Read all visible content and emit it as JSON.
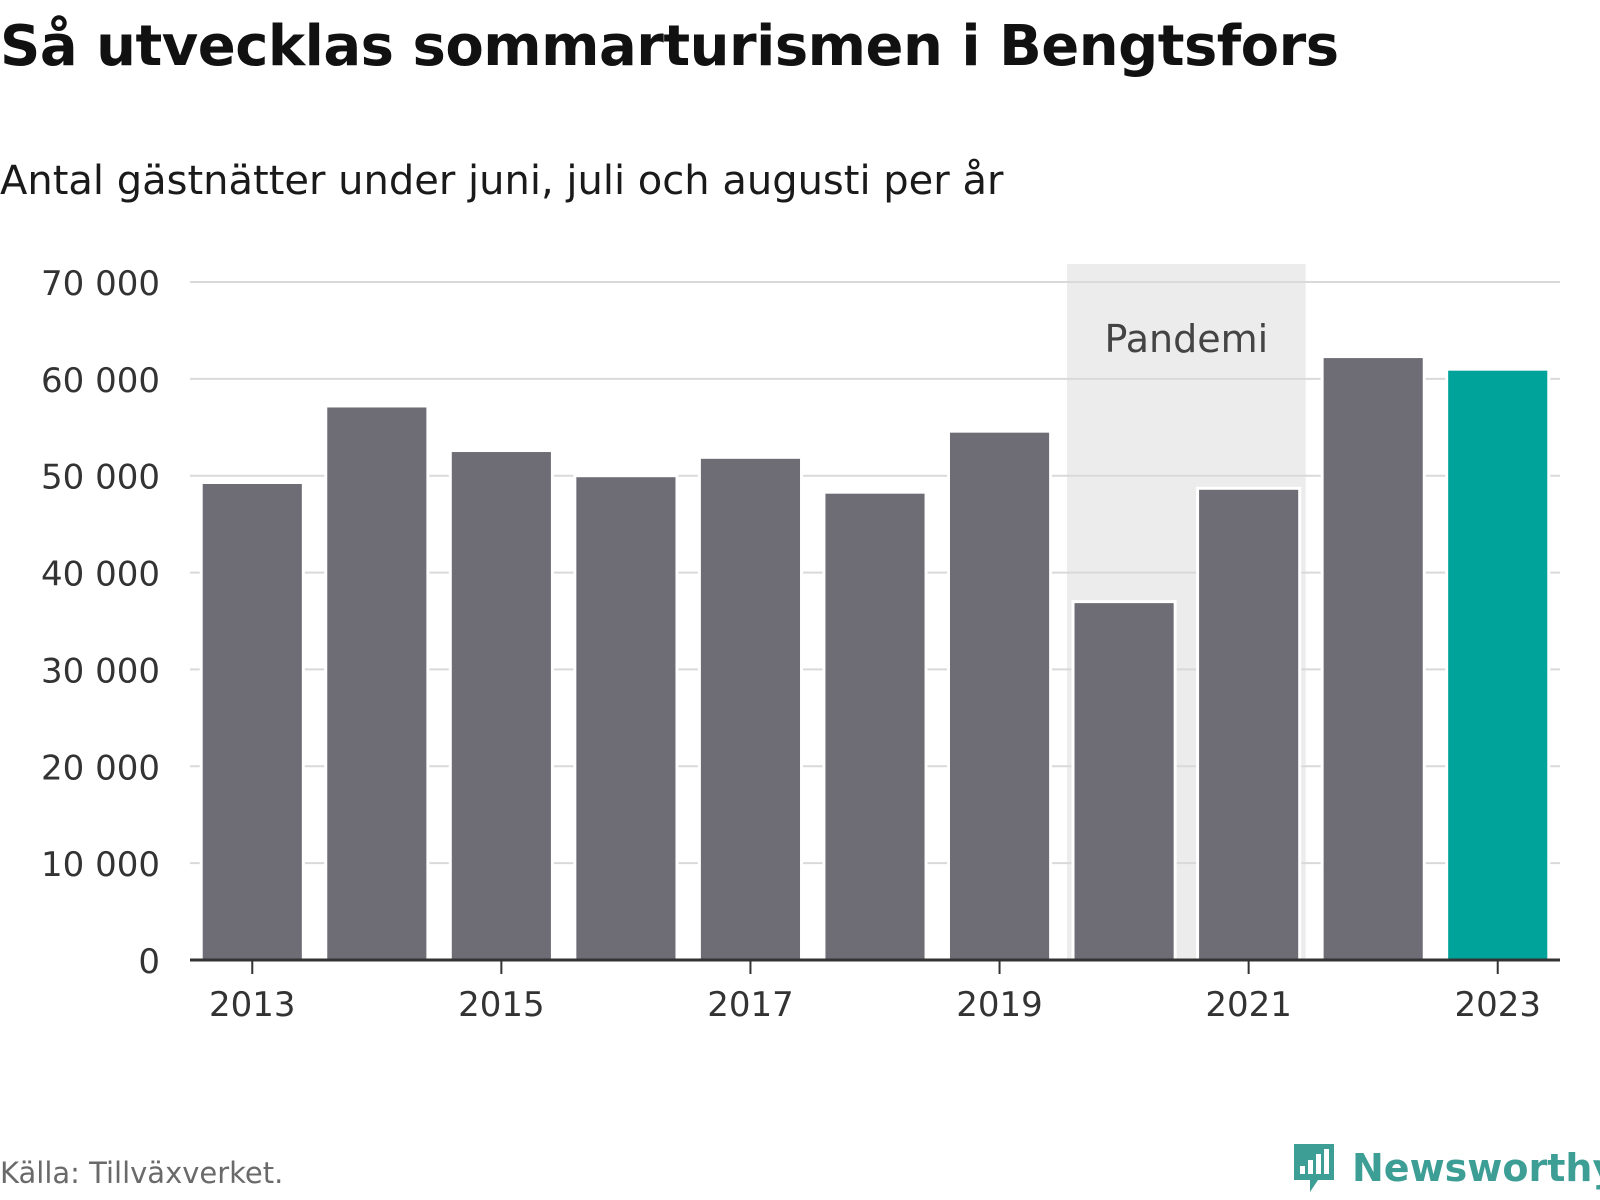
{
  "title": "Så utvecklas sommarturismen i Bengtsfors",
  "subtitle": "Antal gästnätter under juni, juli och augusti per år",
  "source": "Källa: Tillväxverket.",
  "logo": {
    "text": "Newsworthy",
    "icon": "newsworthy-chart-bubble-icon"
  },
  "colors": {
    "bar": "#6e6d75",
    "highlight": "#00a39a",
    "band": "#ececec",
    "grid": "#d9d9d9",
    "axis": "#333333",
    "label": "#333333",
    "logo": "#3d9e95"
  },
  "chart_data": {
    "type": "bar",
    "title": "Så utvecklas sommarturismen i Bengtsfors",
    "subtitle": "Antal gästnätter under juni, juli och augusti per år",
    "xlabel": "",
    "ylabel": "",
    "categories": [
      "2013",
      "2014",
      "2015",
      "2016",
      "2017",
      "2018",
      "2019",
      "2020",
      "2021",
      "2022",
      "2023"
    ],
    "values": [
      49300,
      57200,
      52600,
      50000,
      51900,
      48300,
      54600,
      37000,
      48700,
      62300,
      61000
    ],
    "highlight_category": "2023",
    "ylim": [
      0,
      70000
    ],
    "yticks": [
      0,
      10000,
      20000,
      30000,
      40000,
      50000,
      60000,
      70000
    ],
    "ytick_labels": [
      "0",
      "10 000",
      "20 000",
      "30 000",
      "40 000",
      "50 000",
      "60 000",
      "70 000"
    ],
    "xtick_labels": [
      "2013",
      "2015",
      "2017",
      "2019",
      "2021",
      "2023"
    ],
    "grid": true,
    "annotation": {
      "label": "Pandemi",
      "from": "2020",
      "to": "2021"
    }
  }
}
